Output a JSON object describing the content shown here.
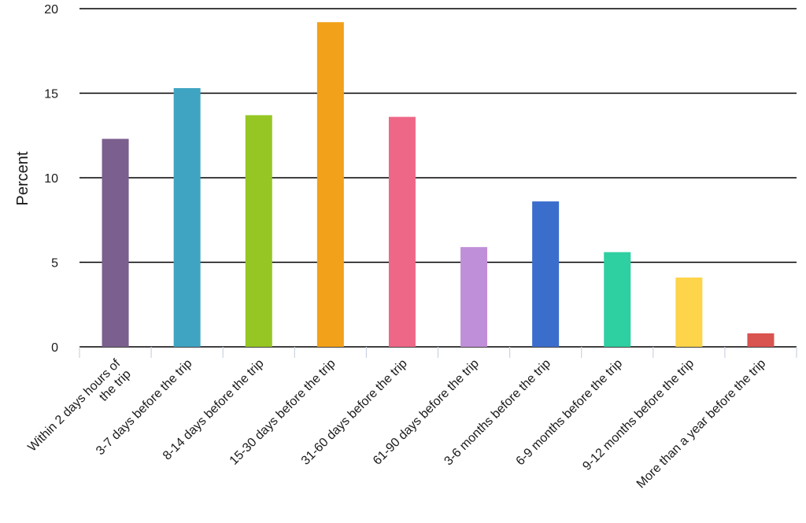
{
  "chart_data": {
    "type": "bar",
    "ylabel": "Percent",
    "xlabel": "",
    "ylim": [
      0,
      20
    ],
    "yticks": [
      "0",
      "5",
      "10",
      "15",
      "20"
    ],
    "grid": true,
    "categories": [
      [
        "Within 2 days hours of",
        "the trip"
      ],
      [
        "3-7 days before the trip"
      ],
      [
        "8-14 days before the trip"
      ],
      [
        "15-30 days before the trip"
      ],
      [
        "31-60 days before the trip"
      ],
      [
        "61-90 days before the trip"
      ],
      [
        "3-6 months before the trip"
      ],
      [
        "6-9 months before the trip"
      ],
      [
        "9-12 months before the trip"
      ],
      [
        "More than a year before the trip"
      ]
    ],
    "values": [
      12.3,
      15.3,
      13.7,
      19.2,
      13.6,
      5.9,
      8.6,
      5.6,
      4.1,
      0.8
    ],
    "colors": [
      "#7b5f8e",
      "#3fa4c2",
      "#95c623",
      "#f2a11b",
      "#ef6787",
      "#c08fd9",
      "#3b6dcc",
      "#2ecfa0",
      "#fdd44a",
      "#d9534f"
    ]
  }
}
